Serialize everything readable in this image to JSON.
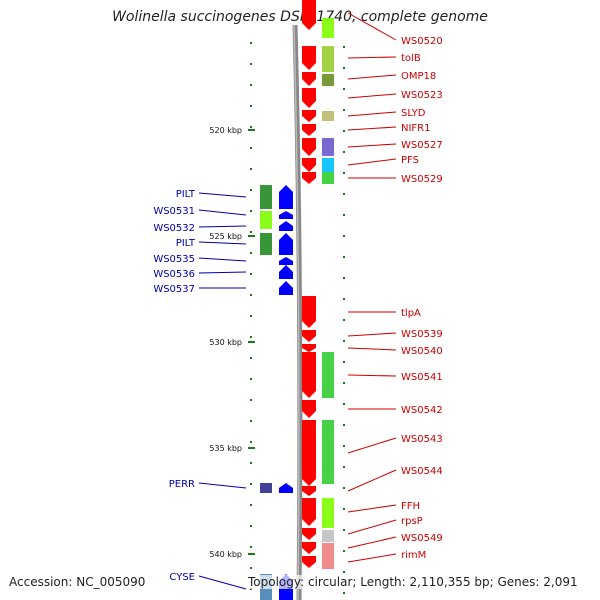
{
  "title": "Wolinella succinogenes DSM 1740, complete genome",
  "accession": "Accession: NC_005090",
  "summary": "Topology: circular; Length: 2,110,355 bp; Genes: 2,091",
  "colors": {
    "forward_label": "#cc0000",
    "reverse_label": "#0000aa",
    "forward_gene": "#ff0000",
    "reverse_gene": "#0000ff",
    "tick": "#1a7a1a"
  },
  "kbp_labels": [
    {
      "text": "520 kbp",
      "kbp": 520
    },
    {
      "text": "525 kbp",
      "kbp": 525
    },
    {
      "text": "530 kbp",
      "kbp": 530
    },
    {
      "text": "535 kbp",
      "kbp": 535
    },
    {
      "text": "540 kbp",
      "kbp": 540
    }
  ],
  "forward_genes": [
    {
      "name": "WS0520"
    },
    {
      "name": "tolB"
    },
    {
      "name": "OMP18"
    },
    {
      "name": "WS0523"
    },
    {
      "name": "SLYD"
    },
    {
      "name": "NIFR1"
    },
    {
      "name": "WS0527"
    },
    {
      "name": "PFS"
    },
    {
      "name": "WS0529"
    },
    {
      "name": "tlpA"
    },
    {
      "name": "WS0539"
    },
    {
      "name": "WS0540"
    },
    {
      "name": "WS0541"
    },
    {
      "name": "WS0542"
    },
    {
      "name": "WS0543"
    },
    {
      "name": "WS0544"
    },
    {
      "name": "FFH"
    },
    {
      "name": "rpsP"
    },
    {
      "name": "WS0549"
    },
    {
      "name": "rimM"
    }
  ],
  "reverse_genes": [
    {
      "name": "PILT"
    },
    {
      "name": "WS0531"
    },
    {
      "name": "WS0532"
    },
    {
      "name": "PILT"
    },
    {
      "name": "WS0535"
    },
    {
      "name": "WS0536"
    },
    {
      "name": "WS0537"
    },
    {
      "name": "PERR"
    },
    {
      "name": "CYSE"
    }
  ]
}
